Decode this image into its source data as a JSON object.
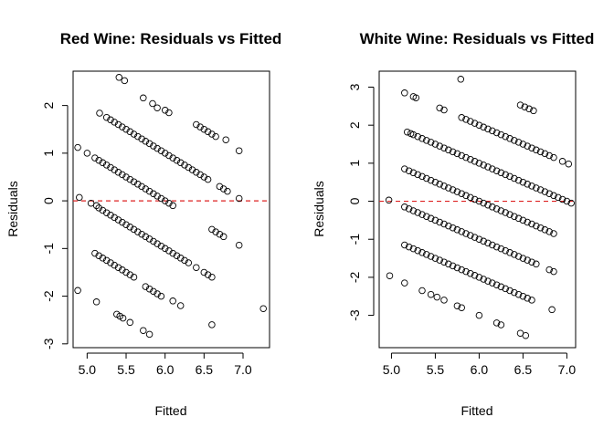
{
  "chart_data": [
    {
      "type": "scatter",
      "title": "Red Wine: Residuals vs Fitted",
      "xlabel": "Fitted",
      "ylabel": "Residuals",
      "xlim": [
        4.82,
        7.34
      ],
      "ylim": [
        -3.08,
        2.72
      ],
      "xticks": [
        "5.0",
        "5.5",
        "6.0",
        "6.5",
        "7.0"
      ],
      "yticks": [
        "-3",
        "-2",
        "-1",
        "0",
        "1",
        "2"
      ],
      "reference_line": {
        "y": 0,
        "color": "#dd2222",
        "style": "dashed"
      },
      "points": [
        [
          4.88,
          1.12
        ],
        [
          4.9,
          0.07
        ],
        [
          4.88,
          -1.88
        ],
        [
          5.0,
          1.0
        ],
        [
          5.05,
          -0.05
        ],
        [
          5.1,
          0.9
        ],
        [
          5.12,
          -0.1
        ],
        [
          5.1,
          -1.1
        ],
        [
          5.12,
          -2.12
        ],
        [
          5.16,
          1.84
        ],
        [
          5.15,
          0.85
        ],
        [
          5.2,
          0.8
        ],
        [
          5.25,
          0.75
        ],
        [
          5.3,
          0.7
        ],
        [
          5.35,
          0.65
        ],
        [
          5.4,
          0.6
        ],
        [
          5.45,
          0.55
        ],
        [
          5.5,
          0.5
        ],
        [
          5.55,
          0.45
        ],
        [
          5.6,
          0.4
        ],
        [
          5.65,
          0.35
        ],
        [
          5.7,
          0.3
        ],
        [
          5.75,
          0.25
        ],
        [
          5.8,
          0.2
        ],
        [
          5.85,
          0.15
        ],
        [
          5.9,
          0.1
        ],
        [
          5.95,
          0.05
        ],
        [
          6.0,
          0.0
        ],
        [
          6.05,
          -0.05
        ],
        [
          6.1,
          -0.1
        ],
        [
          5.25,
          1.75
        ],
        [
          5.3,
          1.7
        ],
        [
          5.35,
          1.65
        ],
        [
          5.4,
          1.6
        ],
        [
          5.45,
          1.55
        ],
        [
          5.5,
          1.5
        ],
        [
          5.55,
          1.45
        ],
        [
          5.6,
          1.4
        ],
        [
          5.65,
          1.35
        ],
        [
          5.7,
          1.3
        ],
        [
          5.75,
          1.25
        ],
        [
          5.8,
          1.2
        ],
        [
          5.85,
          1.15
        ],
        [
          5.9,
          1.1
        ],
        [
          5.95,
          1.05
        ],
        [
          6.0,
          1.0
        ],
        [
          6.05,
          0.95
        ],
        [
          6.1,
          0.9
        ],
        [
          6.15,
          0.85
        ],
        [
          6.2,
          0.8
        ],
        [
          6.25,
          0.75
        ],
        [
          6.3,
          0.7
        ],
        [
          6.35,
          0.65
        ],
        [
          6.4,
          0.6
        ],
        [
          6.45,
          0.55
        ],
        [
          6.5,
          0.5
        ],
        [
          5.15,
          -0.15
        ],
        [
          5.2,
          -0.2
        ],
        [
          5.25,
          -0.25
        ],
        [
          5.3,
          -0.3
        ],
        [
          5.35,
          -0.35
        ],
        [
          5.4,
          -0.4
        ],
        [
          5.45,
          -0.45
        ],
        [
          5.5,
          -0.5
        ],
        [
          5.55,
          -0.55
        ],
        [
          5.6,
          -0.6
        ],
        [
          5.65,
          -0.65
        ],
        [
          5.7,
          -0.7
        ],
        [
          5.75,
          -0.75
        ],
        [
          5.8,
          -0.8
        ],
        [
          5.85,
          -0.85
        ],
        [
          5.9,
          -0.9
        ],
        [
          5.95,
          -0.95
        ],
        [
          6.0,
          -1.0
        ],
        [
          6.05,
          -1.05
        ],
        [
          6.1,
          -1.1
        ],
        [
          6.15,
          -1.15
        ],
        [
          6.2,
          -1.2
        ],
        [
          6.25,
          -1.25
        ],
        [
          5.15,
          -1.15
        ],
        [
          5.2,
          -1.2
        ],
        [
          5.25,
          -1.25
        ],
        [
          5.3,
          -1.3
        ],
        [
          5.35,
          -1.35
        ],
        [
          5.4,
          -1.4
        ],
        [
          5.45,
          -1.45
        ],
        [
          5.5,
          -1.5
        ],
        [
          5.55,
          -1.55
        ],
        [
          5.6,
          -1.6
        ],
        [
          5.75,
          -1.8
        ],
        [
          5.8,
          -1.85
        ],
        [
          5.85,
          -1.9
        ],
        [
          5.9,
          -1.95
        ],
        [
          5.95,
          -2.0
        ],
        [
          6.1,
          -2.1
        ],
        [
          6.2,
          -2.2
        ],
        [
          5.38,
          -2.38
        ],
        [
          5.42,
          -2.42
        ],
        [
          5.46,
          -2.46
        ],
        [
          5.55,
          -2.55
        ],
        [
          5.72,
          -2.72
        ],
        [
          5.8,
          -2.8
        ],
        [
          5.41,
          2.59
        ],
        [
          5.48,
          2.52
        ],
        [
          5.72,
          2.16
        ],
        [
          5.84,
          2.04
        ],
        [
          5.9,
          1.95
        ],
        [
          6.0,
          1.9
        ],
        [
          6.05,
          1.85
        ],
        [
          6.4,
          1.6
        ],
        [
          6.45,
          1.55
        ],
        [
          6.5,
          1.5
        ],
        [
          6.55,
          1.45
        ],
        [
          6.6,
          1.4
        ],
        [
          6.65,
          1.35
        ],
        [
          6.78,
          1.28
        ],
        [
          6.95,
          1.05
        ],
        [
          6.55,
          0.45
        ],
        [
          6.7,
          0.3
        ],
        [
          6.75,
          0.25
        ],
        [
          6.8,
          0.2
        ],
        [
          6.95,
          0.05
        ],
        [
          6.3,
          -1.3
        ],
        [
          6.4,
          -1.4
        ],
        [
          6.5,
          -1.5
        ],
        [
          6.55,
          -1.55
        ],
        [
          6.6,
          -1.6
        ],
        [
          6.6,
          -0.6
        ],
        [
          6.65,
          -0.65
        ],
        [
          6.7,
          -0.7
        ],
        [
          6.75,
          -0.75
        ],
        [
          6.95,
          -0.93
        ],
        [
          6.6,
          -2.6
        ],
        [
          7.26,
          -2.26
        ]
      ]
    },
    {
      "type": "scatter",
      "title": "White Wine: Residuals vs Fitted",
      "xlabel": "Fitted",
      "ylabel": "Residuals",
      "xlim": [
        4.86,
        7.1
      ],
      "ylim": [
        -3.85,
        3.42
      ],
      "xticks": [
        "5.0",
        "5.5",
        "6.0",
        "6.5",
        "7.0"
      ],
      "yticks": [
        "-3",
        "-2",
        "-1",
        "0",
        "1",
        "2",
        "3"
      ],
      "reference_line": {
        "y": 0,
        "color": "#dd2222",
        "style": "dashed"
      },
      "points": [
        [
          4.97,
          0.03
        ],
        [
          4.98,
          -1.96
        ],
        [
          5.15,
          2.85
        ],
        [
          5.25,
          2.75
        ],
        [
          5.28,
          2.72
        ],
        [
          5.55,
          2.45
        ],
        [
          5.6,
          2.4
        ],
        [
          5.79,
          3.21
        ],
        [
          5.8,
          2.2
        ],
        [
          5.85,
          2.15
        ],
        [
          5.18,
          1.82
        ],
        [
          5.22,
          1.78
        ],
        [
          5.25,
          1.75
        ],
        [
          5.3,
          1.7
        ],
        [
          5.35,
          1.65
        ],
        [
          5.4,
          1.6
        ],
        [
          5.45,
          1.55
        ],
        [
          5.5,
          1.5
        ],
        [
          5.55,
          1.45
        ],
        [
          5.6,
          1.4
        ],
        [
          5.65,
          1.35
        ],
        [
          5.7,
          1.3
        ],
        [
          5.75,
          1.25
        ],
        [
          5.8,
          1.2
        ],
        [
          5.85,
          1.15
        ],
        [
          5.9,
          1.1
        ],
        [
          5.95,
          1.05
        ],
        [
          6.0,
          1.0
        ],
        [
          6.05,
          0.95
        ],
        [
          6.1,
          0.9
        ],
        [
          6.15,
          0.85
        ],
        [
          6.2,
          0.8
        ],
        [
          6.25,
          0.75
        ],
        [
          6.3,
          0.7
        ],
        [
          6.35,
          0.65
        ],
        [
          6.4,
          0.6
        ],
        [
          6.45,
          0.55
        ],
        [
          6.5,
          0.5
        ],
        [
          6.55,
          0.45
        ],
        [
          6.6,
          0.4
        ],
        [
          6.65,
          0.35
        ],
        [
          6.7,
          0.3
        ],
        [
          6.75,
          0.25
        ],
        [
          6.8,
          0.2
        ],
        [
          6.85,
          0.15
        ],
        [
          6.9,
          0.1
        ],
        [
          6.95,
          0.05
        ],
        [
          7.0,
          0.0
        ],
        [
          5.9,
          2.1
        ],
        [
          5.95,
          2.05
        ],
        [
          6.0,
          2.0
        ],
        [
          6.05,
          1.95
        ],
        [
          6.1,
          1.9
        ],
        [
          6.15,
          1.85
        ],
        [
          6.2,
          1.8
        ],
        [
          6.25,
          1.75
        ],
        [
          6.3,
          1.7
        ],
        [
          6.35,
          1.65
        ],
        [
          6.4,
          1.6
        ],
        [
          6.45,
          1.55
        ],
        [
          6.5,
          1.5
        ],
        [
          6.55,
          1.45
        ],
        [
          6.6,
          1.4
        ],
        [
          6.65,
          1.35
        ],
        [
          6.7,
          1.3
        ],
        [
          6.75,
          1.25
        ],
        [
          6.8,
          1.2
        ],
        [
          6.85,
          1.15
        ],
        [
          6.47,
          2.53
        ],
        [
          6.52,
          2.48
        ],
        [
          6.57,
          2.43
        ],
        [
          6.62,
          2.38
        ],
        [
          6.95,
          1.05
        ],
        [
          7.02,
          0.98
        ],
        [
          5.15,
          0.85
        ],
        [
          5.2,
          0.8
        ],
        [
          5.25,
          0.75
        ],
        [
          5.3,
          0.7
        ],
        [
          5.35,
          0.65
        ],
        [
          5.4,
          0.6
        ],
        [
          5.45,
          0.55
        ],
        [
          5.5,
          0.5
        ],
        [
          5.55,
          0.45
        ],
        [
          5.6,
          0.4
        ],
        [
          5.65,
          0.35
        ],
        [
          5.7,
          0.3
        ],
        [
          5.75,
          0.25
        ],
        [
          5.8,
          0.2
        ],
        [
          5.85,
          0.15
        ],
        [
          5.9,
          0.1
        ],
        [
          5.95,
          0.05
        ],
        [
          6.0,
          0.0
        ],
        [
          6.05,
          -0.05
        ],
        [
          6.1,
          -0.1
        ],
        [
          6.15,
          -0.15
        ],
        [
          6.2,
          -0.2
        ],
        [
          6.25,
          -0.25
        ],
        [
          6.3,
          -0.3
        ],
        [
          6.35,
          -0.35
        ],
        [
          6.4,
          -0.4
        ],
        [
          6.45,
          -0.45
        ],
        [
          6.5,
          -0.5
        ],
        [
          6.55,
          -0.55
        ],
        [
          6.6,
          -0.6
        ],
        [
          6.65,
          -0.65
        ],
        [
          6.7,
          -0.7
        ],
        [
          6.75,
          -0.75
        ],
        [
          6.8,
          -0.8
        ],
        [
          6.85,
          -0.85
        ],
        [
          7.05,
          -0.05
        ],
        [
          5.15,
          -0.15
        ],
        [
          5.2,
          -0.2
        ],
        [
          5.25,
          -0.25
        ],
        [
          5.3,
          -0.3
        ],
        [
          5.35,
          -0.35
        ],
        [
          5.4,
          -0.4
        ],
        [
          5.45,
          -0.45
        ],
        [
          5.5,
          -0.5
        ],
        [
          5.55,
          -0.55
        ],
        [
          5.6,
          -0.6
        ],
        [
          5.65,
          -0.65
        ],
        [
          5.7,
          -0.7
        ],
        [
          5.75,
          -0.75
        ],
        [
          5.8,
          -0.8
        ],
        [
          5.85,
          -0.85
        ],
        [
          5.9,
          -0.9
        ],
        [
          5.95,
          -0.95
        ],
        [
          6.0,
          -1.0
        ],
        [
          6.05,
          -1.05
        ],
        [
          6.1,
          -1.1
        ],
        [
          6.15,
          -1.15
        ],
        [
          6.2,
          -1.2
        ],
        [
          6.25,
          -1.25
        ],
        [
          6.3,
          -1.3
        ],
        [
          6.35,
          -1.35
        ],
        [
          6.4,
          -1.4
        ],
        [
          6.45,
          -1.45
        ],
        [
          6.5,
          -1.5
        ],
        [
          6.55,
          -1.55
        ],
        [
          6.6,
          -1.6
        ],
        [
          6.65,
          -1.65
        ],
        [
          5.15,
          -1.15
        ],
        [
          5.2,
          -1.2
        ],
        [
          5.25,
          -1.25
        ],
        [
          5.3,
          -1.3
        ],
        [
          5.35,
          -1.35
        ],
        [
          5.4,
          -1.4
        ],
        [
          5.45,
          -1.45
        ],
        [
          5.5,
          -1.5
        ],
        [
          5.55,
          -1.55
        ],
        [
          5.6,
          -1.6
        ],
        [
          5.65,
          -1.65
        ],
        [
          5.7,
          -1.7
        ],
        [
          5.75,
          -1.75
        ],
        [
          5.8,
          -1.8
        ],
        [
          5.85,
          -1.85
        ],
        [
          5.9,
          -1.9
        ],
        [
          5.95,
          -1.95
        ],
        [
          6.0,
          -2.0
        ],
        [
          6.05,
          -2.05
        ],
        [
          6.1,
          -2.1
        ],
        [
          6.15,
          -2.15
        ],
        [
          6.2,
          -2.2
        ],
        [
          6.25,
          -2.25
        ],
        [
          6.3,
          -2.3
        ],
        [
          6.35,
          -2.35
        ],
        [
          6.4,
          -2.4
        ],
        [
          6.45,
          -2.45
        ],
        [
          6.5,
          -2.5
        ],
        [
          6.55,
          -2.55
        ],
        [
          6.6,
          -2.6
        ],
        [
          6.8,
          -1.8
        ],
        [
          6.85,
          -1.85
        ],
        [
          6.83,
          -2.85
        ],
        [
          5.15,
          -2.15
        ],
        [
          5.35,
          -2.35
        ],
        [
          5.45,
          -2.45
        ],
        [
          5.52,
          -2.52
        ],
        [
          5.6,
          -2.6
        ],
        [
          5.75,
          -2.75
        ],
        [
          5.8,
          -2.8
        ],
        [
          6.0,
          -3.0
        ],
        [
          6.2,
          -3.2
        ],
        [
          6.25,
          -3.25
        ],
        [
          6.47,
          -3.47
        ],
        [
          6.53,
          -3.53
        ]
      ]
    }
  ]
}
